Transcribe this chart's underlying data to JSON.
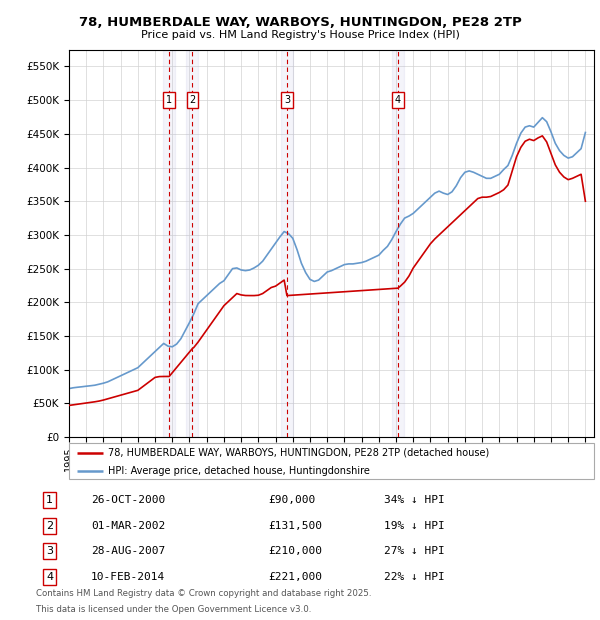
{
  "title": "78, HUMBERDALE WAY, WARBOYS, HUNTINGDON, PE28 2TP",
  "subtitle": "Price paid vs. HM Land Registry's House Price Index (HPI)",
  "legend_line1": "78, HUMBERDALE WAY, WARBOYS, HUNTINGDON, PE28 2TP (detached house)",
  "legend_line2": "HPI: Average price, detached house, Huntingdonshire",
  "footer1": "Contains HM Land Registry data © Crown copyright and database right 2025.",
  "footer2": "This data is licensed under the Open Government Licence v3.0.",
  "sale_color": "#cc0000",
  "hpi_color": "#6699cc",
  "ylim": [
    0,
    575000
  ],
  "yticks": [
    0,
    50000,
    100000,
    150000,
    200000,
    250000,
    300000,
    350000,
    400000,
    450000,
    500000,
    550000
  ],
  "ytick_labels": [
    "£0",
    "£50K",
    "£100K",
    "£150K",
    "£200K",
    "£250K",
    "£300K",
    "£350K",
    "£400K",
    "£450K",
    "£500K",
    "£550K"
  ],
  "xlim_start": 1995.0,
  "xlim_end": 2025.5,
  "transactions": [
    {
      "id": 1,
      "date_num": 2000.82,
      "price": 90000,
      "label": "26-OCT-2000",
      "price_label": "£90,000",
      "hpi_label": "34% ↓ HPI"
    },
    {
      "id": 2,
      "date_num": 2002.17,
      "price": 131500,
      "label": "01-MAR-2002",
      "price_label": "£131,500",
      "hpi_label": "19% ↓ HPI"
    },
    {
      "id": 3,
      "date_num": 2007.66,
      "price": 210000,
      "label": "28-AUG-2007",
      "price_label": "£210,000",
      "hpi_label": "27% ↓ HPI"
    },
    {
      "id": 4,
      "date_num": 2014.11,
      "price": 221000,
      "label": "10-FEB-2014",
      "price_label": "£221,000",
      "hpi_label": "22% ↓ HPI"
    }
  ],
  "hpi_data": [
    [
      1995.0,
      72000
    ],
    [
      1995.25,
      73200
    ],
    [
      1995.5,
      74000
    ],
    [
      1995.75,
      74700
    ],
    [
      1996.0,
      75500
    ],
    [
      1996.25,
      76200
    ],
    [
      1996.5,
      77000
    ],
    [
      1996.75,
      78500
    ],
    [
      1997.0,
      80000
    ],
    [
      1997.25,
      82000
    ],
    [
      1997.5,
      85000
    ],
    [
      1997.75,
      88000
    ],
    [
      1998.0,
      91000
    ],
    [
      1998.25,
      94000
    ],
    [
      1998.5,
      97000
    ],
    [
      1998.75,
      100000
    ],
    [
      1999.0,
      103000
    ],
    [
      1999.25,
      109000
    ],
    [
      1999.5,
      115000
    ],
    [
      1999.75,
      121000
    ],
    [
      2000.0,
      127000
    ],
    [
      2000.25,
      133000
    ],
    [
      2000.5,
      139000
    ],
    [
      2000.75,
      135000
    ],
    [
      2001.0,
      134000
    ],
    [
      2001.25,
      138000
    ],
    [
      2001.5,
      146000
    ],
    [
      2001.75,
      158000
    ],
    [
      2002.0,
      170000
    ],
    [
      2002.25,
      183000
    ],
    [
      2002.5,
      198000
    ],
    [
      2002.75,
      204000
    ],
    [
      2003.0,
      210000
    ],
    [
      2003.25,
      216000
    ],
    [
      2003.5,
      222000
    ],
    [
      2003.75,
      228000
    ],
    [
      2004.0,
      232000
    ],
    [
      2004.25,
      241000
    ],
    [
      2004.5,
      250000
    ],
    [
      2004.75,
      251000
    ],
    [
      2005.0,
      248000
    ],
    [
      2005.25,
      247000
    ],
    [
      2005.5,
      248000
    ],
    [
      2005.75,
      251000
    ],
    [
      2006.0,
      255000
    ],
    [
      2006.25,
      261000
    ],
    [
      2006.5,
      270000
    ],
    [
      2006.75,
      279000
    ],
    [
      2007.0,
      288000
    ],
    [
      2007.25,
      297000
    ],
    [
      2007.5,
      305000
    ],
    [
      2007.75,
      302000
    ],
    [
      2008.0,
      295000
    ],
    [
      2008.25,
      278000
    ],
    [
      2008.5,
      258000
    ],
    [
      2008.75,
      244000
    ],
    [
      2009.0,
      234000
    ],
    [
      2009.25,
      231000
    ],
    [
      2009.5,
      233000
    ],
    [
      2009.75,
      239000
    ],
    [
      2010.0,
      245000
    ],
    [
      2010.25,
      247000
    ],
    [
      2010.5,
      250000
    ],
    [
      2010.75,
      253000
    ],
    [
      2011.0,
      256000
    ],
    [
      2011.25,
      257000
    ],
    [
      2011.5,
      257000
    ],
    [
      2011.75,
      258000
    ],
    [
      2012.0,
      259000
    ],
    [
      2012.25,
      261000
    ],
    [
      2012.5,
      264000
    ],
    [
      2012.75,
      267000
    ],
    [
      2013.0,
      270000
    ],
    [
      2013.25,
      277000
    ],
    [
      2013.5,
      283000
    ],
    [
      2013.75,
      293000
    ],
    [
      2014.0,
      305000
    ],
    [
      2014.25,
      316000
    ],
    [
      2014.5,
      325000
    ],
    [
      2014.75,
      328000
    ],
    [
      2015.0,
      332000
    ],
    [
      2015.25,
      338000
    ],
    [
      2015.5,
      344000
    ],
    [
      2015.75,
      350000
    ],
    [
      2016.0,
      356000
    ],
    [
      2016.25,
      362000
    ],
    [
      2016.5,
      365000
    ],
    [
      2016.75,
      362000
    ],
    [
      2017.0,
      360000
    ],
    [
      2017.25,
      364000
    ],
    [
      2017.5,
      373000
    ],
    [
      2017.75,
      385000
    ],
    [
      2018.0,
      393000
    ],
    [
      2018.25,
      395000
    ],
    [
      2018.5,
      393000
    ],
    [
      2018.75,
      390000
    ],
    [
      2019.0,
      387000
    ],
    [
      2019.25,
      384000
    ],
    [
      2019.5,
      384000
    ],
    [
      2019.75,
      387000
    ],
    [
      2020.0,
      390000
    ],
    [
      2020.25,
      397000
    ],
    [
      2020.5,
      403000
    ],
    [
      2020.75,
      418000
    ],
    [
      2021.0,
      436000
    ],
    [
      2021.25,
      451000
    ],
    [
      2021.5,
      460000
    ],
    [
      2021.75,
      462000
    ],
    [
      2022.0,
      460000
    ],
    [
      2022.25,
      467000
    ],
    [
      2022.5,
      474000
    ],
    [
      2022.75,
      468000
    ],
    [
      2023.0,
      453000
    ],
    [
      2023.25,
      436000
    ],
    [
      2023.5,
      425000
    ],
    [
      2023.75,
      418000
    ],
    [
      2024.0,
      414000
    ],
    [
      2024.25,
      416000
    ],
    [
      2024.5,
      422000
    ],
    [
      2024.75,
      428000
    ],
    [
      2025.0,
      452000
    ]
  ],
  "sale_data": [
    [
      1995.0,
      47000
    ],
    [
      1995.25,
      47900
    ],
    [
      1995.5,
      48800
    ],
    [
      1995.75,
      49700
    ],
    [
      1996.0,
      50600
    ],
    [
      1996.25,
      51500
    ],
    [
      1996.5,
      52400
    ],
    [
      1996.75,
      53500
    ],
    [
      1997.0,
      55000
    ],
    [
      1997.25,
      56800
    ],
    [
      1997.5,
      58600
    ],
    [
      1997.75,
      60400
    ],
    [
      1998.0,
      62200
    ],
    [
      1998.25,
      64000
    ],
    [
      1998.5,
      65800
    ],
    [
      1998.75,
      67600
    ],
    [
      1999.0,
      69400
    ],
    [
      1999.25,
      74200
    ],
    [
      1999.5,
      79000
    ],
    [
      1999.75,
      83800
    ],
    [
      2000.0,
      88600
    ],
    [
      2000.25,
      89800
    ],
    [
      2000.5,
      89950
    ],
    [
      2000.75,
      90000
    ],
    [
      2000.82,
      90000
    ],
    [
      2002.17,
      131500
    ],
    [
      2002.25,
      133000
    ],
    [
      2002.5,
      141000
    ],
    [
      2002.75,
      150000
    ],
    [
      2003.0,
      159000
    ],
    [
      2003.25,
      168000
    ],
    [
      2003.5,
      177000
    ],
    [
      2003.75,
      186000
    ],
    [
      2004.0,
      195000
    ],
    [
      2004.25,
      201000
    ],
    [
      2004.5,
      207000
    ],
    [
      2004.75,
      213000
    ],
    [
      2005.0,
      211000
    ],
    [
      2005.25,
      210100
    ],
    [
      2005.5,
      210010
    ],
    [
      2005.75,
      210001
    ],
    [
      2006.0,
      210500
    ],
    [
      2006.25,
      213000
    ],
    [
      2006.5,
      217500
    ],
    [
      2006.75,
      222000
    ],
    [
      2007.0,
      224000
    ],
    [
      2007.25,
      228500
    ],
    [
      2007.5,
      233000
    ],
    [
      2007.66,
      210000
    ],
    [
      2014.11,
      221000
    ],
    [
      2014.25,
      224000
    ],
    [
      2014.5,
      230000
    ],
    [
      2014.75,
      239000
    ],
    [
      2015.0,
      251000
    ],
    [
      2015.25,
      260000
    ],
    [
      2015.5,
      269000
    ],
    [
      2015.75,
      278000
    ],
    [
      2016.0,
      287000
    ],
    [
      2016.25,
      294000
    ],
    [
      2016.5,
      300000
    ],
    [
      2016.75,
      306000
    ],
    [
      2017.0,
      312000
    ],
    [
      2017.25,
      318000
    ],
    [
      2017.5,
      324000
    ],
    [
      2017.75,
      330000
    ],
    [
      2018.0,
      336000
    ],
    [
      2018.25,
      342000
    ],
    [
      2018.5,
      348000
    ],
    [
      2018.75,
      354000
    ],
    [
      2019.0,
      356000
    ],
    [
      2019.25,
      356000
    ],
    [
      2019.5,
      357000
    ],
    [
      2019.75,
      360000
    ],
    [
      2020.0,
      363000
    ],
    [
      2020.25,
      367000
    ],
    [
      2020.5,
      374000
    ],
    [
      2020.75,
      395000
    ],
    [
      2021.0,
      416000
    ],
    [
      2021.25,
      430000
    ],
    [
      2021.5,
      439000
    ],
    [
      2021.75,
      442000
    ],
    [
      2022.0,
      440000
    ],
    [
      2022.25,
      444000
    ],
    [
      2022.5,
      447000
    ],
    [
      2022.75,
      438000
    ],
    [
      2023.0,
      421000
    ],
    [
      2023.25,
      404000
    ],
    [
      2023.5,
      393000
    ],
    [
      2023.75,
      386000
    ],
    [
      2024.0,
      382000
    ],
    [
      2024.25,
      384000
    ],
    [
      2024.5,
      387000
    ],
    [
      2024.75,
      390000
    ],
    [
      2025.0,
      350000
    ]
  ]
}
